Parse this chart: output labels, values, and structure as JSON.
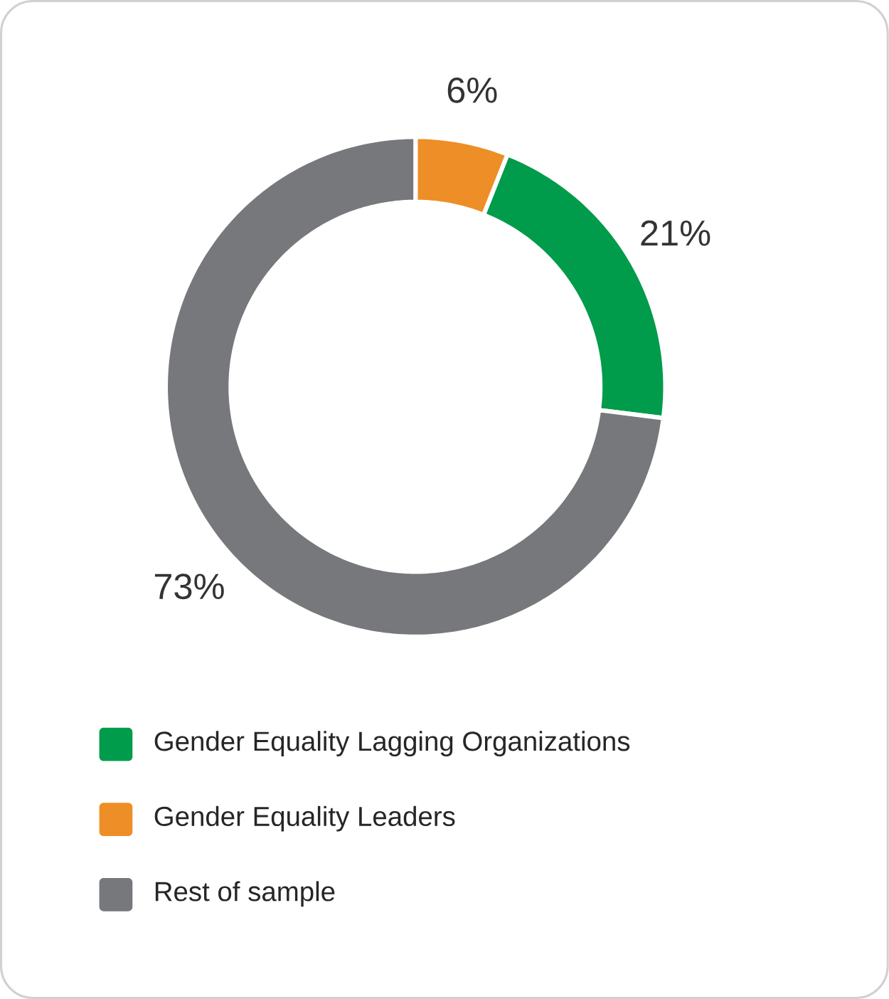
{
  "chart_data": {
    "type": "donut",
    "categories": [
      "Gender Equality Lagging Organizations",
      "Gender Equality Leaders",
      "Rest of sample"
    ],
    "values": [
      21,
      6,
      73
    ],
    "colors": [
      "#009b4b",
      "#ee8e26",
      "#76787b"
    ],
    "value_labels": [
      "21%",
      "6%",
      "73%"
    ],
    "legend": "bottom"
  }
}
